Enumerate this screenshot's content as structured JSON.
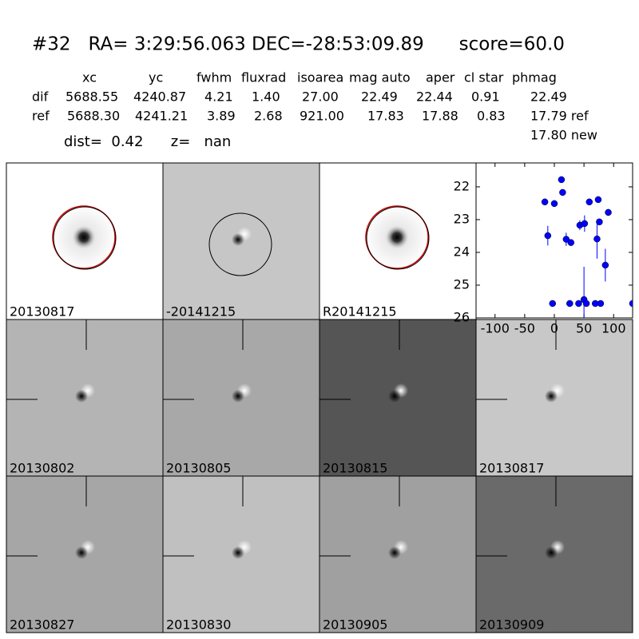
{
  "header": {
    "title": "#32   RA= 3:29:56.063 DEC=-28:53:09.89      score=60.0",
    "columns": [
      "xc",
      "yc",
      "fwhm",
      "fluxrad",
      "isoarea",
      "mag auto",
      "aper",
      "cl star",
      "phmag"
    ],
    "rows": [
      [
        "dif",
        "5688.55",
        "4240.87",
        "4.21",
        "1.40",
        "27.00",
        "22.49",
        "22.44",
        "0.91",
        "22.49"
      ],
      [
        "ref",
        "5688.30",
        "4241.21",
        "3.89",
        "2.68",
        "921.00",
        "17.83",
        "17.88",
        "0.83",
        "17.79 ref"
      ]
    ],
    "note": "17.80 new",
    "dist": "dist=  0.42      z=   nan"
  },
  "panels": [
    "20130817",
    "-20141215",
    "R20141215",
    "20130802",
    "20130805",
    "20130815",
    "20130817",
    "20130827",
    "20130830",
    "20130905",
    "20130909"
  ],
  "chart_data": {
    "type": "scatter",
    "color": "#0000ff",
    "x": [
      -16,
      0,
      12,
      14,
      -11,
      -3,
      20,
      28,
      26,
      43,
      51,
      59,
      74,
      91,
      72,
      76,
      86,
      50,
      41,
      54,
      69,
      78,
      132
    ],
    "values": [
      22.46,
      22.51,
      21.78,
      22.17,
      23.49,
      25.56,
      23.6,
      23.7,
      25.56,
      23.17,
      23.12,
      22.46,
      22.39,
      22.78,
      23.59,
      23.07,
      24.39,
      25.44,
      25.56,
      25.56,
      25.56,
      25.56,
      25.56
    ],
    "errors": [
      0.05,
      0.05,
      0.05,
      0.05,
      0.3,
      0.05,
      0.2,
      0.1,
      0.05,
      0.15,
      0.25,
      0.05,
      0.05,
      0.1,
      0.6,
      0.1,
      0.5,
      1.0,
      0.05,
      0.05,
      0.05,
      0.05,
      0.05
    ],
    "xlim": [
      -132,
      132
    ],
    "xticks": [
      -100,
      -50,
      0,
      50,
      100
    ],
    "ylim": [
      26,
      21.27
    ],
    "yticks": [
      22,
      23,
      24,
      25,
      26
    ]
  }
}
